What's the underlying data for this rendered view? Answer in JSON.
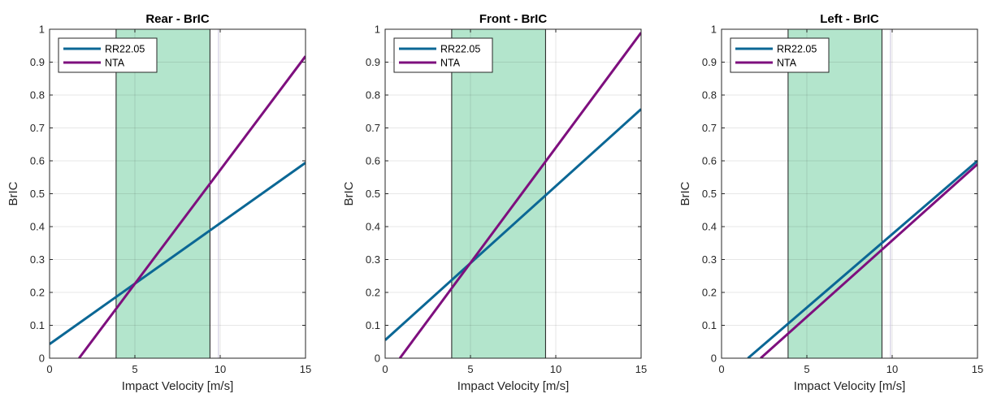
{
  "chart_data": [
    {
      "type": "line",
      "title": "Rear - BrIC",
      "xlabel": "Impact Velocity [m/s]",
      "ylabel": "BrIC",
      "xlim": [
        0,
        15
      ],
      "ylim": [
        0,
        1
      ],
      "xticks": [
        "0",
        "5",
        "10",
        "15"
      ],
      "yticks": [
        "0",
        "0.1",
        "0.2",
        "0.3",
        "0.4",
        "0.5",
        "0.6",
        "0.7",
        "0.8",
        "0.9",
        "1"
      ],
      "grid": true,
      "legend_position": "top-left",
      "shaded_region": {
        "x": [
          3.9,
          9.4
        ],
        "color": "#b3e5cc"
      },
      "vertical_line_x": 9.9,
      "series": [
        {
          "name": "RR22.05",
          "color": "#0b6795",
          "x": [
            0,
            15
          ],
          "y": [
            0.043,
            0.594
          ]
        },
        {
          "name": "NTA",
          "color": "#7e0f7e",
          "x": [
            1.73,
            15
          ],
          "y": [
            0.0,
            0.918
          ]
        }
      ]
    },
    {
      "type": "line",
      "title": "Front - BrIC",
      "xlabel": "Impact Velocity [m/s]",
      "ylabel": "BrIC",
      "xlim": [
        0,
        15
      ],
      "ylim": [
        0,
        1
      ],
      "xticks": [
        "0",
        "5",
        "10",
        "15"
      ],
      "yticks": [
        "0",
        "0.1",
        "0.2",
        "0.3",
        "0.4",
        "0.5",
        "0.6",
        "0.7",
        "0.8",
        "0.9",
        "1"
      ],
      "grid": true,
      "legend_position": "top-left",
      "shaded_region": {
        "x": [
          3.9,
          9.4
        ],
        "color": "#b3e5cc"
      },
      "vertical_line_x": null,
      "series": [
        {
          "name": "RR22.05",
          "color": "#0b6795",
          "x": [
            0,
            15
          ],
          "y": [
            0.055,
            0.757
          ]
        },
        {
          "name": "NTA",
          "color": "#7e0f7e",
          "x": [
            0.86,
            15
          ],
          "y": [
            0.0,
            0.99
          ]
        }
      ]
    },
    {
      "type": "line",
      "title": "Left - BrIC",
      "xlabel": "Impact Velocity [m/s]",
      "ylabel": "BrIC",
      "xlim": [
        0,
        15
      ],
      "ylim": [
        0,
        1
      ],
      "xticks": [
        "0",
        "5",
        "10",
        "15"
      ],
      "yticks": [
        "0",
        "0.1",
        "0.2",
        "0.3",
        "0.4",
        "0.5",
        "0.6",
        "0.7",
        "0.8",
        "0.9",
        "1"
      ],
      "grid": true,
      "legend_position": "top-left",
      "shaded_region": {
        "x": [
          3.9,
          9.4
        ],
        "color": "#b3e5cc"
      },
      "vertical_line_x": 9.9,
      "series": [
        {
          "name": "RR22.05",
          "color": "#0b6795",
          "x": [
            1.55,
            15
          ],
          "y": [
            0.0,
            0.6
          ]
        },
        {
          "name": "NTA",
          "color": "#7e0f7e",
          "x": [
            2.29,
            15
          ],
          "y": [
            0.0,
            0.59
          ]
        }
      ]
    }
  ]
}
